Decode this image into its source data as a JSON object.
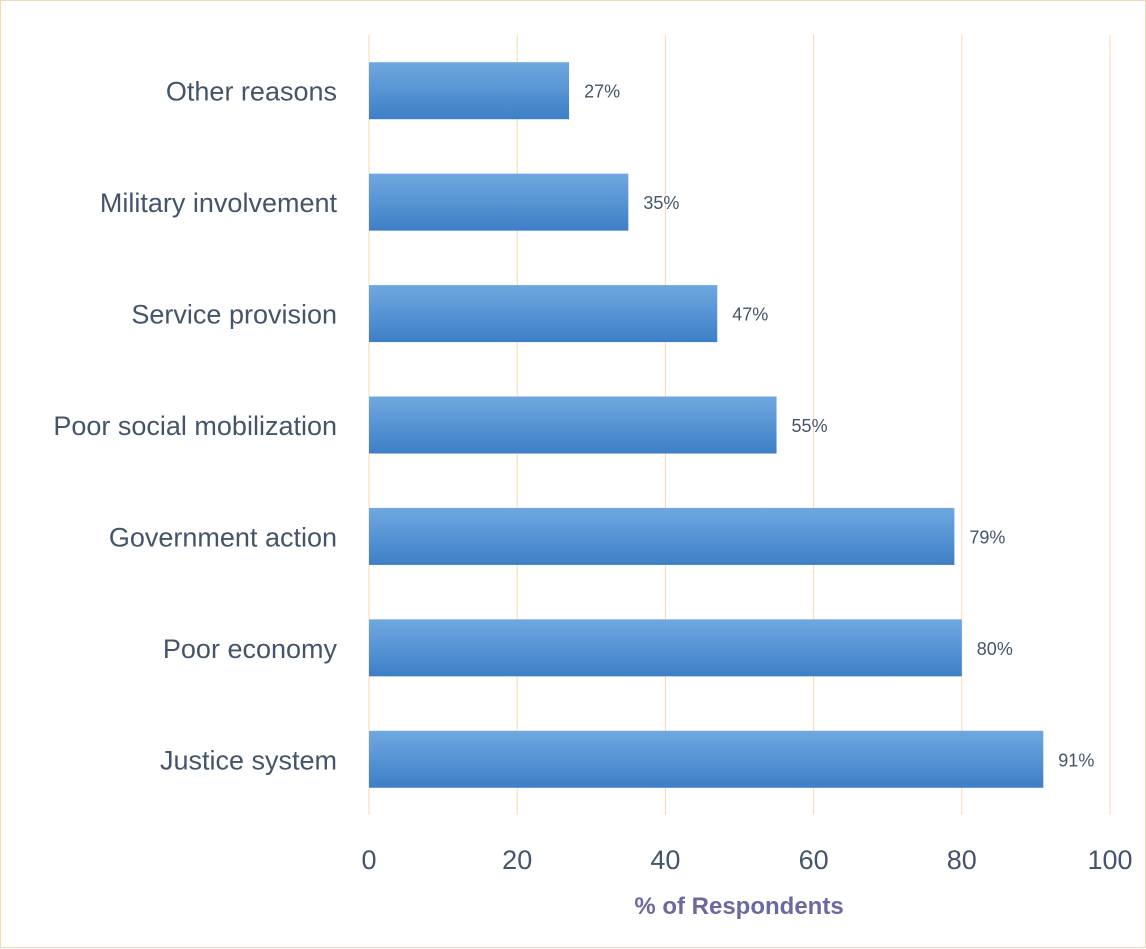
{
  "chart_data": {
    "type": "bar",
    "orientation": "horizontal",
    "categories": [
      "Other reasons",
      "Military involvement",
      "Service provision",
      "Poor social mobilization",
      "Government action",
      "Poor economy",
      "Justice system"
    ],
    "values": [
      27,
      35,
      47,
      55,
      79,
      80,
      91
    ],
    "data_labels": [
      "27%",
      "35%",
      "47%",
      "55%",
      "79%",
      "80%",
      "91%"
    ],
    "xlabel": "% of Respondents",
    "xlim": [
      0,
      100
    ],
    "xticks": [
      "0",
      "20",
      "40",
      "60",
      "80",
      "100"
    ],
    "grid": "vertical",
    "bar_color_top": "#6fa8e0",
    "bar_color_bottom": "#3d7fc6",
    "grid_color": "#f6d9b0",
    "text_color": "#44546a",
    "axis_title_color": "#6a6aa0"
  }
}
